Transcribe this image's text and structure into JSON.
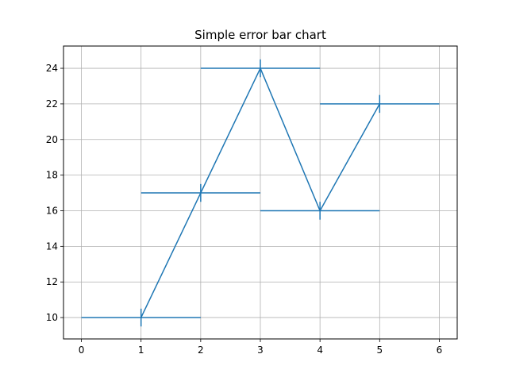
{
  "chart_data": {
    "type": "line",
    "title": "Simple error bar chart",
    "xlabel": "",
    "ylabel": "",
    "xlim": [
      -0.3,
      6.3
    ],
    "ylim": [
      8.8,
      25.25
    ],
    "grid": true,
    "xticks": [
      0,
      1,
      2,
      3,
      4,
      5,
      6
    ],
    "yticks": [
      10,
      12,
      14,
      16,
      18,
      20,
      22,
      24
    ],
    "series": [
      {
        "x": [
          1,
          2,
          3,
          4,
          5
        ],
        "y": [
          10,
          17,
          24,
          16,
          22
        ],
        "xerr": [
          1,
          1,
          1,
          1,
          1
        ],
        "yerr": [
          0.5,
          0.5,
          0.5,
          0.5,
          0.5
        ],
        "color": "#1f77b4"
      }
    ]
  }
}
